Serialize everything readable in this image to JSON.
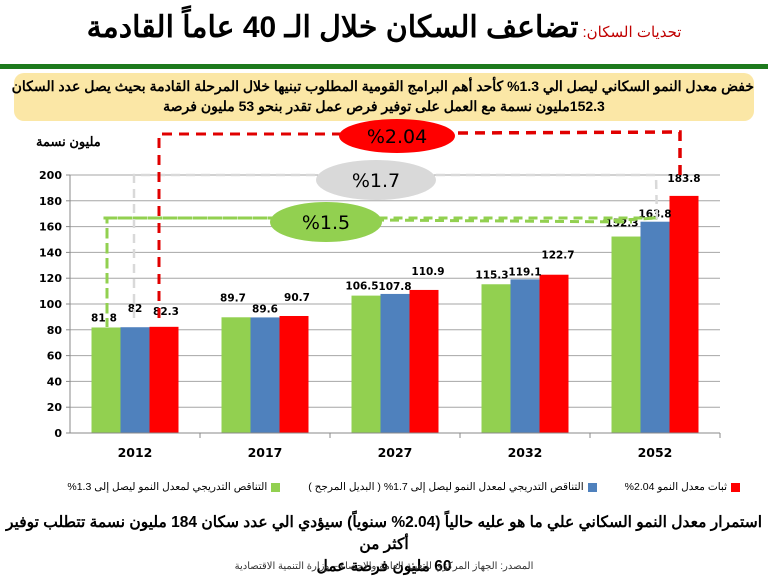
{
  "header": {
    "prefix": "تحديات السكان:",
    "title": "تضاعف السكان خلال الـ 40 عاماً القادمة"
  },
  "banner": {
    "line1": "خفض معدل النمو السكاني ليصل الي 1.3% كأحد أهم البرامج القومية المطلوب تبنيها خلال المرحلة القادمة بحيث يصل عدد السكان",
    "line2": "152.3مليون نسمة مع العمل على توفير فرص عمل تقدر بنحو 53 مليون فرصة"
  },
  "callouts": [
    {
      "label": "%2.04",
      "color": "#ff0000"
    },
    {
      "label": "%1.7",
      "color": "#d9d9d9"
    },
    {
      "label": "%1.5",
      "color": "#92d050"
    }
  ],
  "chart_data": {
    "type": "bar",
    "title": "تضاعف السكان خلال الـ 40 عاماً القادمة",
    "ylabel": "مليون نسمة",
    "xlabel": "",
    "ylim": [
      0,
      200
    ],
    "yticks": [
      0,
      20,
      40,
      60,
      80,
      100,
      120,
      140,
      160,
      180,
      200
    ],
    "grid": true,
    "legend_position": "bottom",
    "categories": [
      "2012",
      "2017",
      "2027",
      "2032",
      "2052"
    ],
    "series": [
      {
        "name": "التناقص التدريجي لمعدل النمو ليصل إلى 1.3%",
        "color": "#92d050",
        "values": [
          81.8,
          89.7,
          106.5,
          115.3,
          152.3
        ]
      },
      {
        "name": "التناقص التدريجي لمعدل النمو ليصل إلى 1.7% ( البديل المرجح )",
        "color": "#4f81bd",
        "values": [
          82,
          89.6,
          107.8,
          119.1,
          163.8
        ]
      },
      {
        "name": "ثبات معدل النمو 2.04%",
        "color": "#ff0000",
        "values": [
          82.3,
          90.7,
          110.9,
          122.7,
          183.8
        ]
      }
    ],
    "annotations": [
      "%2.04",
      "%1.7",
      "%1.5"
    ]
  },
  "legend": [
    {
      "label": "ثبات معدل النمو 2.04%",
      "color": "#ff0000"
    },
    {
      "label": "التناقص التدريجي لمعدل النمو ليصل إلى 1.7% ( البديل المرجح )",
      "color": "#4f81bd"
    },
    {
      "label": "التناقص التدريجي لمعدل النمو ليصل إلى 1.3%",
      "color": "#92d050"
    }
  ],
  "conclusion": {
    "line1": "استمرار معدل النمو السكاني علي ما هو عليه حالياً (2.04% سنوياً) سيؤدي الي عدد سكان 184 مليون نسمة تتطلب توفير أكثر من",
    "line2": "60 مليون فرصة عمل"
  },
  "source": "المصدر: الجهاز المركزي للتعبئة العامة والاحصاء – وزارة التنمية الاقتصادية"
}
